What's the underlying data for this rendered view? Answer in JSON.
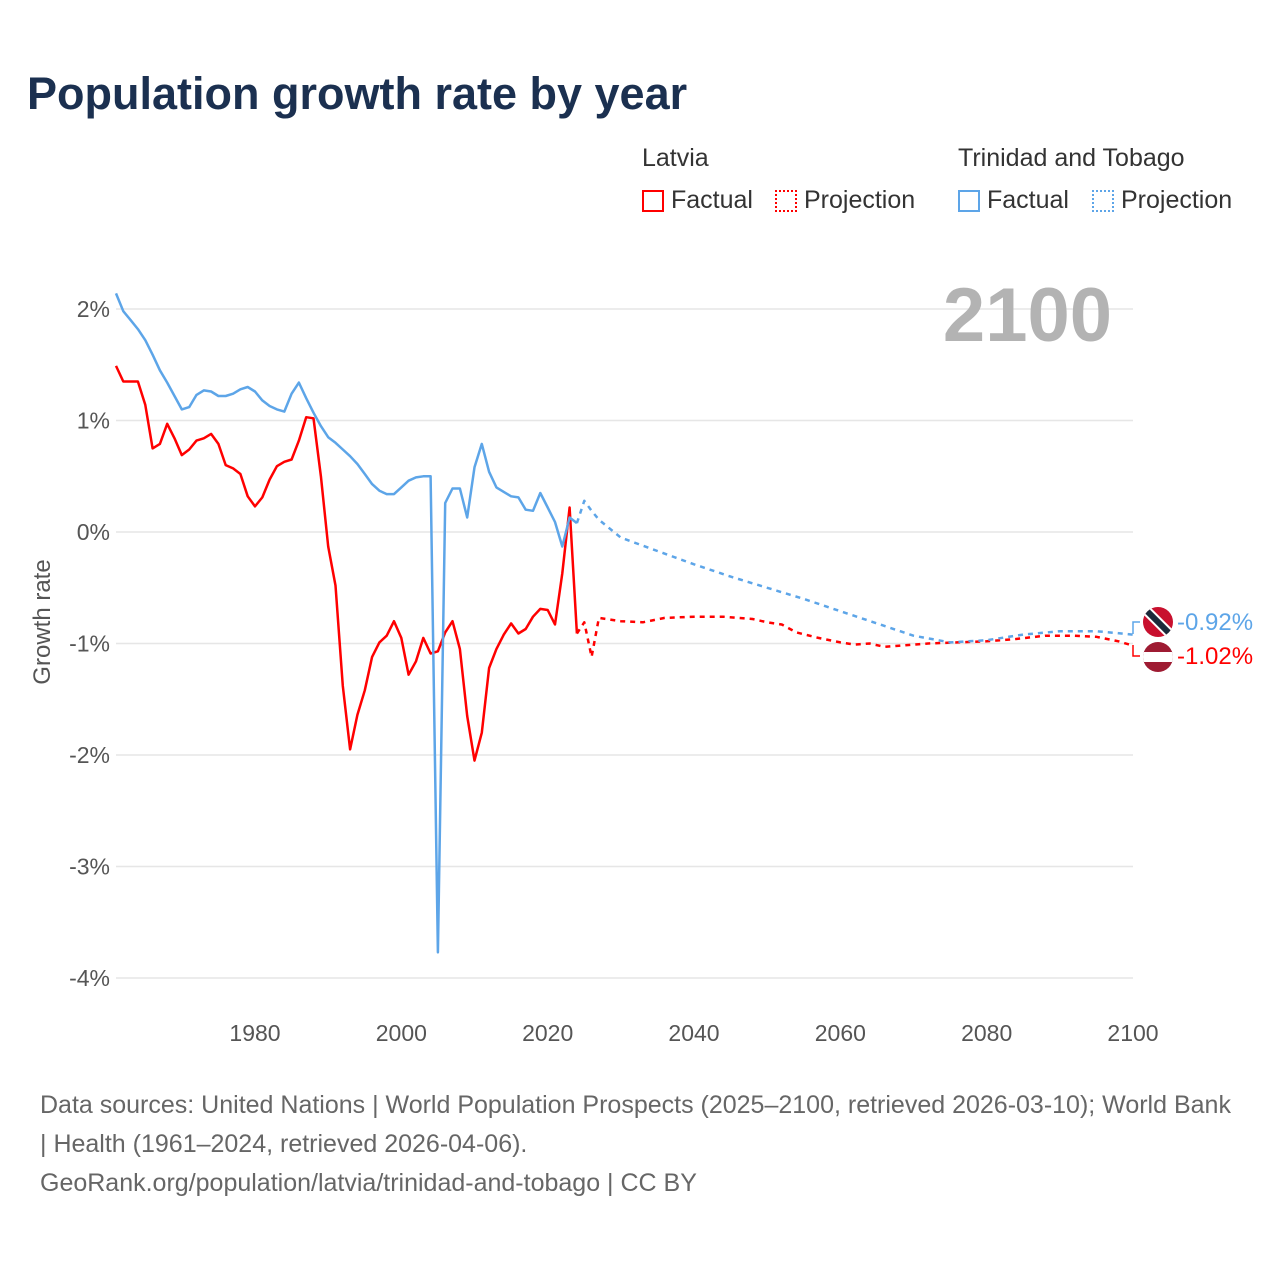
{
  "title": "Population growth rate by year",
  "legend": {
    "groups": [
      {
        "name": "Latvia",
        "factual": "Factual",
        "projection": "Projection",
        "color": "#ff0000"
      },
      {
        "name": "Trinidad and Tobago",
        "factual": "Factual",
        "projection": "Projection",
        "color": "#5da5e8"
      }
    ]
  },
  "current_year": "2100",
  "end_labels": {
    "trinidad": "-0.92%",
    "latvia": "-1.02%"
  },
  "footer": {
    "line1": "Data sources: United Nations | World Population Prospects (2025–2100, retrieved 2026-03-10); World Bank | Health (1961–2024, retrieved 2026-04-06).",
    "line2": "GeoRank.org/population/latvia/trinidad-and-tobago | CC BY"
  },
  "chart_data": {
    "type": "line",
    "title": "Population growth rate by year",
    "xlabel": "",
    "ylabel": "Growth rate",
    "xlim": [
      1961,
      2100
    ],
    "ylim": [
      -4.3,
      2.2
    ],
    "x_ticks": [
      1980,
      2000,
      2020,
      2040,
      2060,
      2080,
      2100
    ],
    "y_ticks": [
      2,
      1,
      0,
      -1,
      -2,
      -3,
      -4
    ],
    "y_tick_labels": [
      "2%",
      "1%",
      "0%",
      "-1%",
      "-2%",
      "-3%",
      "-4%"
    ],
    "grid": true,
    "legend_position": "top-right",
    "series": [
      {
        "name": "Latvia Factual",
        "color": "#ff0000",
        "dashed": false,
        "x": [
          1961,
          1962,
          1963,
          1964,
          1965,
          1966,
          1967,
          1968,
          1969,
          1970,
          1971,
          1972,
          1973,
          1974,
          1975,
          1976,
          1977,
          1978,
          1979,
          1980,
          1981,
          1982,
          1983,
          1984,
          1985,
          1986,
          1987,
          1988,
          1989,
          1990,
          1991,
          1992,
          1993,
          1994,
          1995,
          1996,
          1997,
          1998,
          1999,
          2000,
          2001,
          2002,
          2003,
          2004,
          2005,
          2006,
          2007,
          2008,
          2009,
          2010,
          2011,
          2012,
          2013,
          2014,
          2015,
          2016,
          2017,
          2018,
          2019,
          2020,
          2021,
          2022,
          2023,
          2024
        ],
        "y": [
          1.49,
          1.35,
          1.35,
          1.35,
          1.14,
          0.75,
          0.79,
          0.97,
          0.84,
          0.69,
          0.74,
          0.82,
          0.84,
          0.88,
          0.79,
          0.6,
          0.57,
          0.52,
          0.32,
          0.23,
          0.31,
          0.47,
          0.59,
          0.63,
          0.65,
          0.82,
          1.03,
          1.02,
          0.5,
          -0.13,
          -0.48,
          -1.38,
          -1.95,
          -1.64,
          -1.42,
          -1.12,
          -0.99,
          -0.93,
          -0.8,
          -0.95,
          -1.28,
          -1.16,
          -0.95,
          -1.09,
          -1.07,
          -0.9,
          -0.8,
          -1.05,
          -1.65,
          -2.05,
          -1.8,
          -1.22,
          -1.05,
          -0.92,
          -0.82,
          -0.91,
          -0.87,
          -0.76,
          -0.69,
          -0.7,
          -0.83,
          -0.37,
          0.22,
          -0.91
        ]
      },
      {
        "name": "Latvia Projection",
        "color": "#ff0000",
        "dashed": true,
        "x": [
          2024,
          2025,
          2026,
          2027,
          2030,
          2033,
          2036,
          2040,
          2044,
          2048,
          2050,
          2052,
          2054,
          2057,
          2060,
          2062,
          2064,
          2066,
          2068,
          2072,
          2076,
          2080,
          2084,
          2088,
          2092,
          2095,
          2098,
          2100
        ],
        "y": [
          -0.91,
          -0.81,
          -1.12,
          -0.77,
          -0.8,
          -0.81,
          -0.77,
          -0.76,
          -0.76,
          -0.78,
          -0.81,
          -0.83,
          -0.9,
          -0.95,
          -0.99,
          -1.01,
          -1.0,
          -1.03,
          -1.02,
          -1.0,
          -0.99,
          -0.98,
          -0.96,
          -0.93,
          -0.93,
          -0.94,
          -0.98,
          -1.02
        ]
      },
      {
        "name": "Trinidad and Tobago Factual",
        "color": "#5da5e8",
        "dashed": false,
        "x": [
          1961,
          1962,
          1963,
          1964,
          1965,
          1966,
          1967,
          1968,
          1969,
          1970,
          1971,
          1972,
          1973,
          1974,
          1975,
          1976,
          1977,
          1978,
          1979,
          1980,
          1981,
          1982,
          1983,
          1984,
          1985,
          1986,
          1987,
          1988,
          1989,
          1990,
          1991,
          1992,
          1993,
          1994,
          1995,
          1996,
          1997,
          1998,
          1999,
          2000,
          2001,
          2002,
          2003,
          2004,
          2005,
          2006,
          2007,
          2008,
          2009,
          2010,
          2011,
          2012,
          2013,
          2014,
          2015,
          2016,
          2017,
          2018,
          2019,
          2020,
          2021,
          2022,
          2023,
          2024
        ],
        "y": [
          2.14,
          1.98,
          1.9,
          1.82,
          1.72,
          1.59,
          1.45,
          1.34,
          1.22,
          1.1,
          1.12,
          1.23,
          1.27,
          1.26,
          1.22,
          1.22,
          1.24,
          1.28,
          1.3,
          1.26,
          1.18,
          1.13,
          1.1,
          1.08,
          1.24,
          1.34,
          1.2,
          1.07,
          0.95,
          0.85,
          0.8,
          0.74,
          0.68,
          0.61,
          0.52,
          0.43,
          0.37,
          0.34,
          0.34,
          0.4,
          0.46,
          0.49,
          0.5,
          0.5,
          -3.77,
          0.26,
          0.39,
          0.39,
          0.13,
          0.58,
          0.79,
          0.54,
          0.4,
          0.36,
          0.32,
          0.31,
          0.2,
          0.19,
          0.35,
          0.22,
          0.09,
          -0.13,
          0.13,
          0.08
        ]
      },
      {
        "name": "Trinidad and Tobago Projection",
        "color": "#5da5e8",
        "dashed": true,
        "x": [
          2024,
          2025,
          2026,
          2027,
          2030,
          2035,
          2040,
          2045,
          2050,
          2055,
          2060,
          2065,
          2070,
          2075,
          2080,
          2085,
          2090,
          2095,
          2100
        ],
        "y": [
          0.08,
          0.28,
          0.19,
          0.11,
          -0.05,
          -0.17,
          -0.29,
          -0.4,
          -0.5,
          -0.6,
          -0.71,
          -0.82,
          -0.93,
          -0.99,
          -0.97,
          -0.92,
          -0.89,
          -0.89,
          -0.92
        ]
      }
    ]
  }
}
